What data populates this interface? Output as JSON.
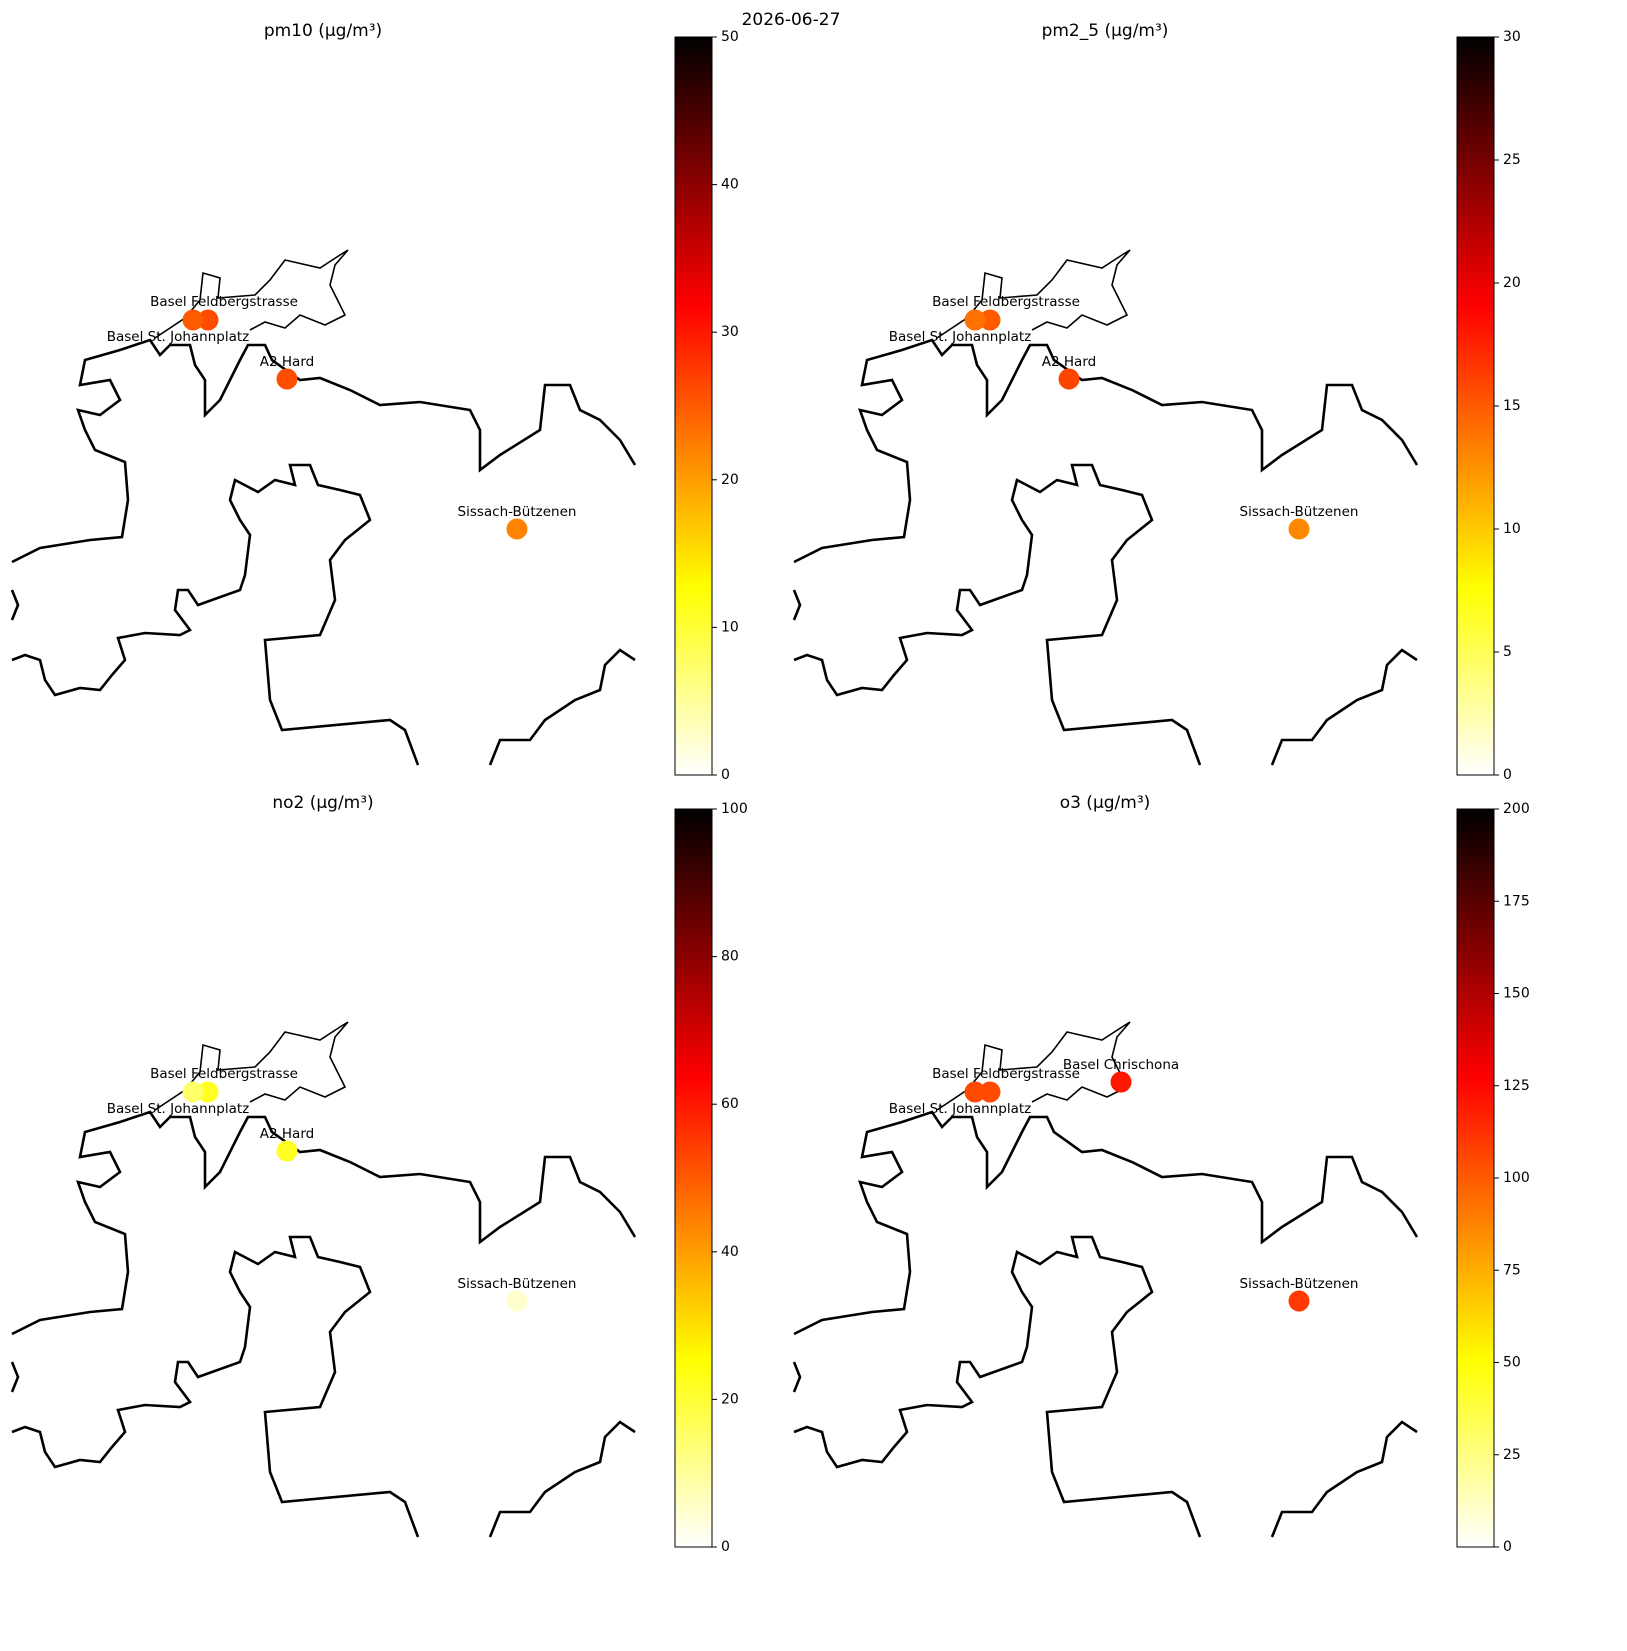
{
  "title": "2026-06-27",
  "chart_data": [
    {
      "type": "map_scatter",
      "title": "pm10 (µg/m³)",
      "cmap": "hot_r",
      "categories": [
        "Basel Feldbergstrasse",
        "Basel St. Johannplatz",
        "A2 Hard",
        "Sissach-Bützenen"
      ],
      "values": [
        26,
        25,
        26,
        22
      ],
      "clim": [
        0,
        50
      ],
      "cticks": [
        0,
        10,
        20,
        30,
        40,
        50
      ]
    },
    {
      "type": "map_scatter",
      "title": "pm2_5 (µg/m³)",
      "cmap": "hot_r",
      "categories": [
        "Basel Feldbergstrasse",
        "Basel St. Johannplatz",
        "A2 Hard",
        "Sissach-Bützenen"
      ],
      "values": [
        15,
        14,
        16,
        13
      ],
      "clim": [
        0,
        30
      ],
      "cticks": [
        0,
        5,
        10,
        15,
        20,
        25,
        30
      ]
    },
    {
      "type": "map_scatter",
      "title": "no2 (µg/m³)",
      "cmap": "hot_r",
      "categories": [
        "Basel Feldbergstrasse",
        "Basel St. Johannplatz",
        "A2 Hard",
        "Sissach-Bützenen"
      ],
      "values": [
        22,
        15,
        22,
        5
      ],
      "clim": [
        0,
        100
      ],
      "cticks": [
        0,
        20,
        40,
        60,
        80,
        100
      ]
    },
    {
      "type": "map_scatter",
      "title": "o3 (µg/m³)",
      "cmap": "hot_r",
      "categories": [
        "Basel Feldbergstrasse",
        "Basel St. Johannplatz",
        "Basel Chrischona",
        "Sissach-Bützenen"
      ],
      "values": [
        105,
        105,
        120,
        110
      ],
      "clim": [
        0,
        200
      ],
      "cticks": [
        0,
        25,
        50,
        75,
        100,
        125,
        150,
        175,
        200
      ]
    }
  ]
}
